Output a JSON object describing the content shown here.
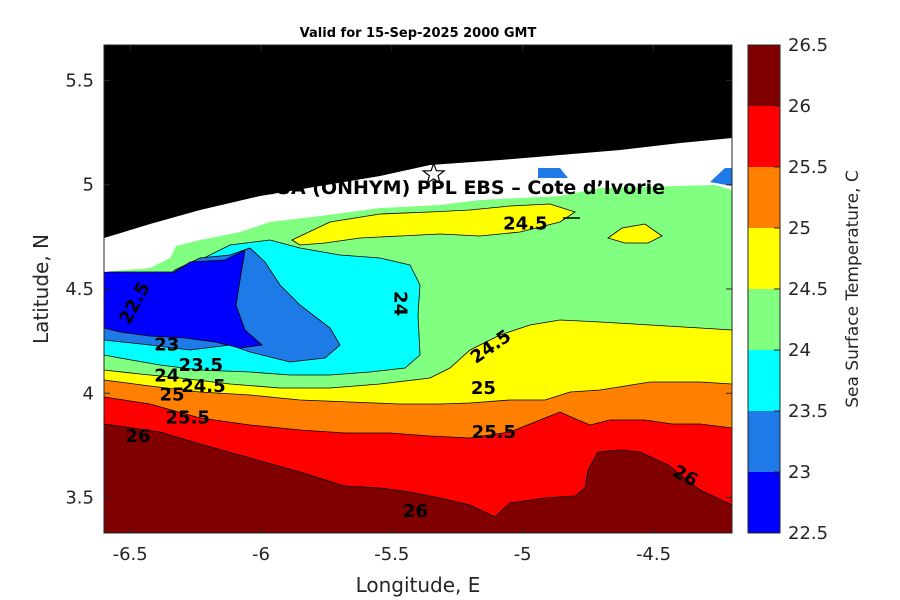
{
  "chart_data": {
    "type": "heatmap",
    "title": "Valid for 15-Sep-2025 2000 GMT",
    "xlabel": "Longitude, E",
    "ylabel": "Latitude, N",
    "xlim": [
      -6.6,
      -4.2
    ],
    "ylim": [
      3.33,
      5.67
    ],
    "x_ticks": [
      -6.5,
      -6,
      -5.5,
      -5,
      -4.5
    ],
    "x_tick_labels": [
      "-6.5",
      "-6",
      "-5.5",
      "-5",
      "-4.5"
    ],
    "y_ticks": [
      3.5,
      4,
      4.5,
      5,
      5.5
    ],
    "y_tick_labels": [
      "3.5",
      "4",
      "4.5",
      "5",
      "5.5"
    ],
    "colorbar": {
      "label": "Sea Surface Temperature, C",
      "levels": [
        22.5,
        23,
        23.5,
        24,
        24.5,
        25,
        25.5,
        26,
        26.5
      ],
      "tick_labels": [
        "22.5",
        "23",
        "23.5",
        "24",
        "24.5",
        "25",
        "25.5",
        "26",
        "26.5"
      ],
      "colors": [
        "#0000ff",
        "#1e7ae6",
        "#00ffff",
        "#80ff80",
        "#ffff00",
        "#ff8000",
        "#ff0000",
        "#800000"
      ]
    },
    "land_color": "#000000",
    "no_data_color": "#ffffff",
    "contour_labels": [
      {
        "text": "22.5",
        "x": -6.48,
        "y": 4.43
      },
      {
        "text": "23",
        "x": -6.36,
        "y": 4.23
      },
      {
        "text": "23.5",
        "x": -6.23,
        "y": 4.13
      },
      {
        "text": "24",
        "x": -6.36,
        "y": 4.08
      },
      {
        "text": "24.5",
        "x": -6.22,
        "y": 4.03
      },
      {
        "text": "25",
        "x": -6.34,
        "y": 3.99
      },
      {
        "text": "25.5",
        "x": -6.28,
        "y": 3.88
      },
      {
        "text": "26",
        "x": -6.47,
        "y": 3.79
      },
      {
        "text": "24",
        "x": -5.47,
        "y": 4.43
      },
      {
        "text": "24.5",
        "x": -4.99,
        "y": 4.81
      },
      {
        "text": "24.5",
        "x": -5.12,
        "y": 4.22
      },
      {
        "text": "25",
        "x": -5.15,
        "y": 4.02
      },
      {
        "text": "25.5",
        "x": -5.11,
        "y": 3.81
      },
      {
        "text": "26",
        "x": -5.41,
        "y": 3.43
      },
      {
        "text": "26",
        "x": -4.38,
        "y": 3.6
      }
    ],
    "site": {
      "label": "CI-803A (ONHYM) PPL EBS  – Cote d’Ivorie",
      "marker_x": -5.34,
      "marker_y": 5.05
    }
  }
}
